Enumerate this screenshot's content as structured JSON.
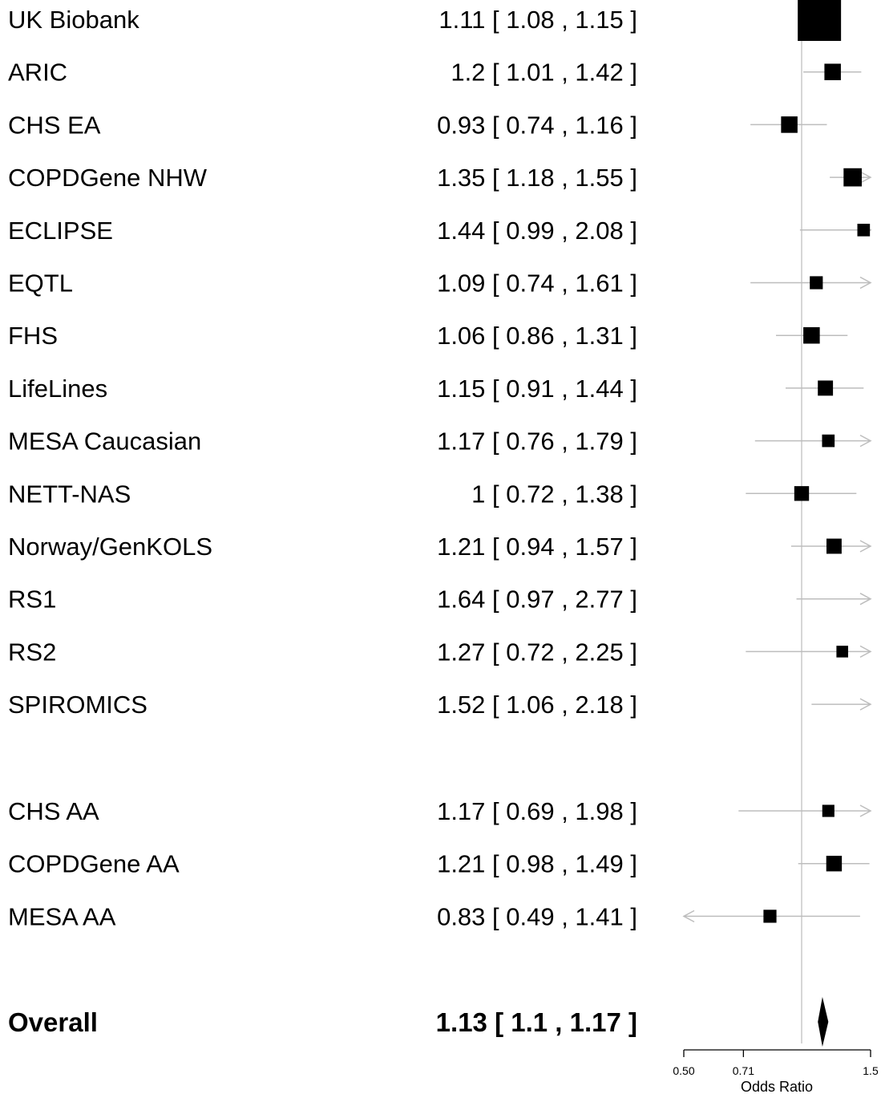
{
  "chart_data": {
    "type": "forest",
    "xlabel": "Odds Ratio",
    "x_scale": "log",
    "xlim": [
      0.5,
      1.5
    ],
    "x_ticks": [
      "0.50",
      "0.71",
      "1.5"
    ],
    "reference_line": 1,
    "rows": [
      {
        "study": "UK Biobank",
        "or": 1.11,
        "lo": 1.08,
        "hi": 1.15,
        "ci_text": "1.11 [ 1.08 , 1.15 ]",
        "box": 1.0
      },
      {
        "study": "ARIC",
        "or": 1.2,
        "lo": 1.01,
        "hi": 1.42,
        "ci_text": "1.2 [ 1.01 , 1.42 ]",
        "box": 0.38
      },
      {
        "study": "CHS EA",
        "or": 0.93,
        "lo": 0.74,
        "hi": 1.16,
        "ci_text": "0.93 [ 0.74 , 1.16 ]",
        "box": 0.38
      },
      {
        "study": "COPDGene NHW",
        "or": 1.35,
        "lo": 1.18,
        "hi": 1.55,
        "ci_text": "1.35 [ 1.18 , 1.55 ]",
        "box": 0.42
      },
      {
        "study": "ECLIPSE",
        "or": 1.44,
        "lo": 0.99,
        "hi": 2.08,
        "ci_text": "1.44 [ 0.99 , 2.08 ]",
        "box": 0.29
      },
      {
        "study": "EQTL",
        "or": 1.09,
        "lo": 0.74,
        "hi": 1.61,
        "ci_text": "1.09 [ 0.74 , 1.61 ]",
        "box": 0.3
      },
      {
        "study": "FHS",
        "or": 1.06,
        "lo": 0.86,
        "hi": 1.31,
        "ci_text": "1.06 [ 0.86 , 1.31 ]",
        "box": 0.38
      },
      {
        "study": "LifeLines",
        "or": 1.15,
        "lo": 0.91,
        "hi": 1.44,
        "ci_text": "1.15 [ 0.91 , 1.44 ]",
        "box": 0.35
      },
      {
        "study": "MESA Caucasian",
        "or": 1.17,
        "lo": 0.76,
        "hi": 1.79,
        "ci_text": "1.17 [ 0.76 , 1.79 ]",
        "box": 0.29
      },
      {
        "study": "NETT-NAS",
        "or": 1,
        "lo": 0.72,
        "hi": 1.38,
        "ci_text": "1 [ 0.72 , 1.38 ]",
        "box": 0.34
      },
      {
        "study": "Norway/GenKOLS",
        "or": 1.21,
        "lo": 0.94,
        "hi": 1.57,
        "ci_text": "1.21 [ 0.94 , 1.57 ]",
        "box": 0.35
      },
      {
        "study": "RS1",
        "or": 1.64,
        "lo": 0.97,
        "hi": 2.77,
        "ci_text": "1.64 [ 0.97 , 2.77 ]",
        "box": 0
      },
      {
        "study": "RS2",
        "or": 1.27,
        "lo": 0.72,
        "hi": 2.25,
        "ci_text": "1.27 [ 0.72 , 2.25 ]",
        "box": 0.27
      },
      {
        "study": "SPIROMICS",
        "or": 1.52,
        "lo": 1.06,
        "hi": 2.18,
        "ci_text": "1.52 [ 1.06 , 2.18 ]",
        "box": 0
      },
      {
        "study": "CHS AA",
        "or": 1.17,
        "lo": 0.69,
        "hi": 1.98,
        "ci_text": "1.17 [ 0.69 , 1.98 ]",
        "box": 0.28
      },
      {
        "study": "COPDGene AA",
        "or": 1.21,
        "lo": 0.98,
        "hi": 1.49,
        "ci_text": "1.21 [ 0.98 , 1.49 ]",
        "box": 0.36
      },
      {
        "study": "MESA AA",
        "or": 0.83,
        "lo": 0.49,
        "hi": 1.41,
        "ci_text": "0.83 [ 0.49 , 1.41 ]",
        "box": 0.3
      }
    ],
    "overall": {
      "study": "Overall",
      "or": 1.13,
      "lo": 1.1,
      "hi": 1.17,
      "ci_text": "1.13 [ 1.1 , 1.17 ]"
    }
  }
}
